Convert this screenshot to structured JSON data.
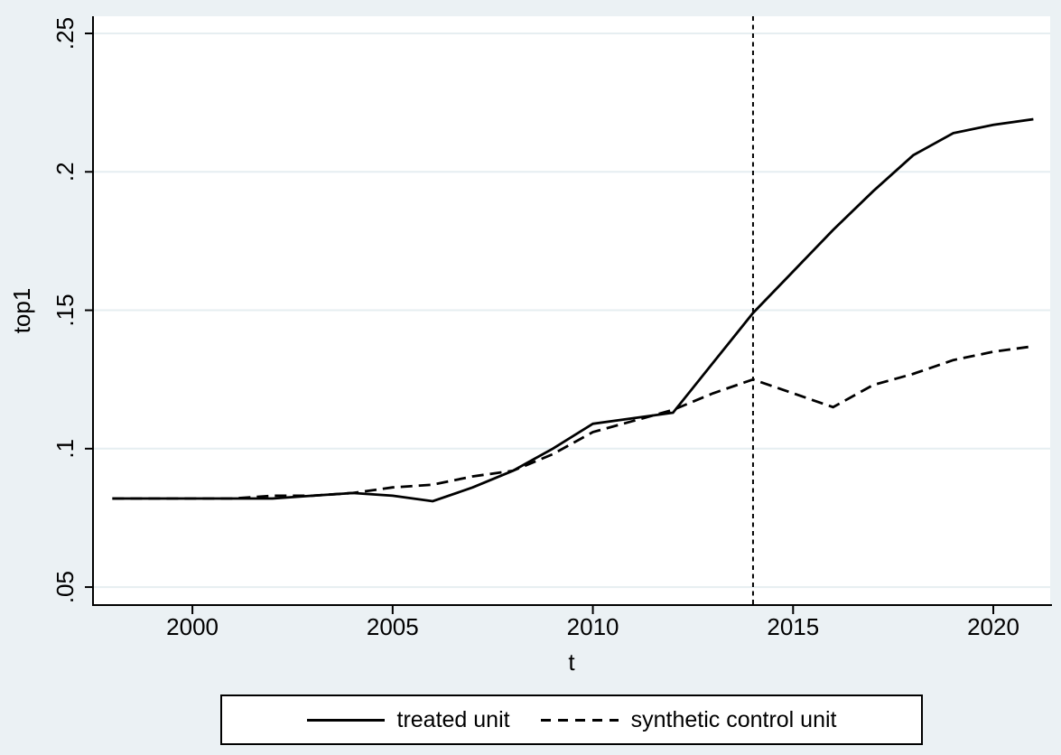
{
  "figure": {
    "background_color": "#ebf1f4",
    "plot_background_color": "#ffffff",
    "grid_color": "#e6eef1",
    "axis_color": "#000000",
    "treatment_line_style": "dotted-vertical"
  },
  "chart_data": {
    "type": "line",
    "title": "",
    "xlabel": "t",
    "ylabel": "top1",
    "grid": true,
    "legend_position": "bottom",
    "xlim": [
      1997.54,
      2021.42
    ],
    "ylim": [
      0.0435,
      0.2562
    ],
    "x_ticks": [
      {
        "value": 2000,
        "label": "2000"
      },
      {
        "value": 2005,
        "label": "2005"
      },
      {
        "value": 2010,
        "label": "2010"
      },
      {
        "value": 2015,
        "label": "2015"
      },
      {
        "value": 2020,
        "label": "2020"
      }
    ],
    "y_ticks": [
      {
        "value": 0.05,
        "label": ".05"
      },
      {
        "value": 0.1,
        "label": ".1"
      },
      {
        "value": 0.15,
        "label": ".15"
      },
      {
        "value": 0.2,
        "label": ".2"
      },
      {
        "value": 0.25,
        "label": ".25"
      }
    ],
    "treatment_line_x": 2014,
    "x": [
      1998,
      1999,
      2000,
      2001,
      2002,
      2003,
      2004,
      2005,
      2006,
      2007,
      2008,
      2009,
      2010,
      2011,
      2012,
      2013,
      2014,
      2015,
      2016,
      2017,
      2018,
      2019,
      2020,
      2021
    ],
    "series": [
      {
        "name": "treated unit",
        "style": "solid",
        "color": "#000000",
        "values": [
          0.082,
          0.082,
          0.082,
          0.082,
          0.082,
          0.083,
          0.084,
          0.083,
          0.081,
          0.086,
          0.092,
          0.1,
          0.109,
          0.111,
          0.113,
          0.131,
          0.149,
          0.164,
          0.179,
          0.193,
          0.206,
          0.214,
          0.217,
          0.219
        ]
      },
      {
        "name": "synthetic control unit",
        "style": "dashed",
        "color": "#000000",
        "values": [
          0.082,
          0.082,
          0.082,
          0.082,
          0.083,
          0.083,
          0.084,
          0.086,
          0.087,
          0.09,
          0.092,
          0.098,
          0.106,
          0.11,
          0.114,
          0.12,
          0.125,
          0.12,
          0.115,
          0.123,
          0.127,
          0.132,
          0.135,
          0.137
        ]
      }
    ]
  },
  "axis_titles": {
    "x": "t",
    "y": "top1"
  },
  "legend": {
    "items": [
      {
        "label": "treated unit",
        "line_style": "solid"
      },
      {
        "label": "synthetic control unit",
        "line_style": "dashed"
      }
    ]
  }
}
